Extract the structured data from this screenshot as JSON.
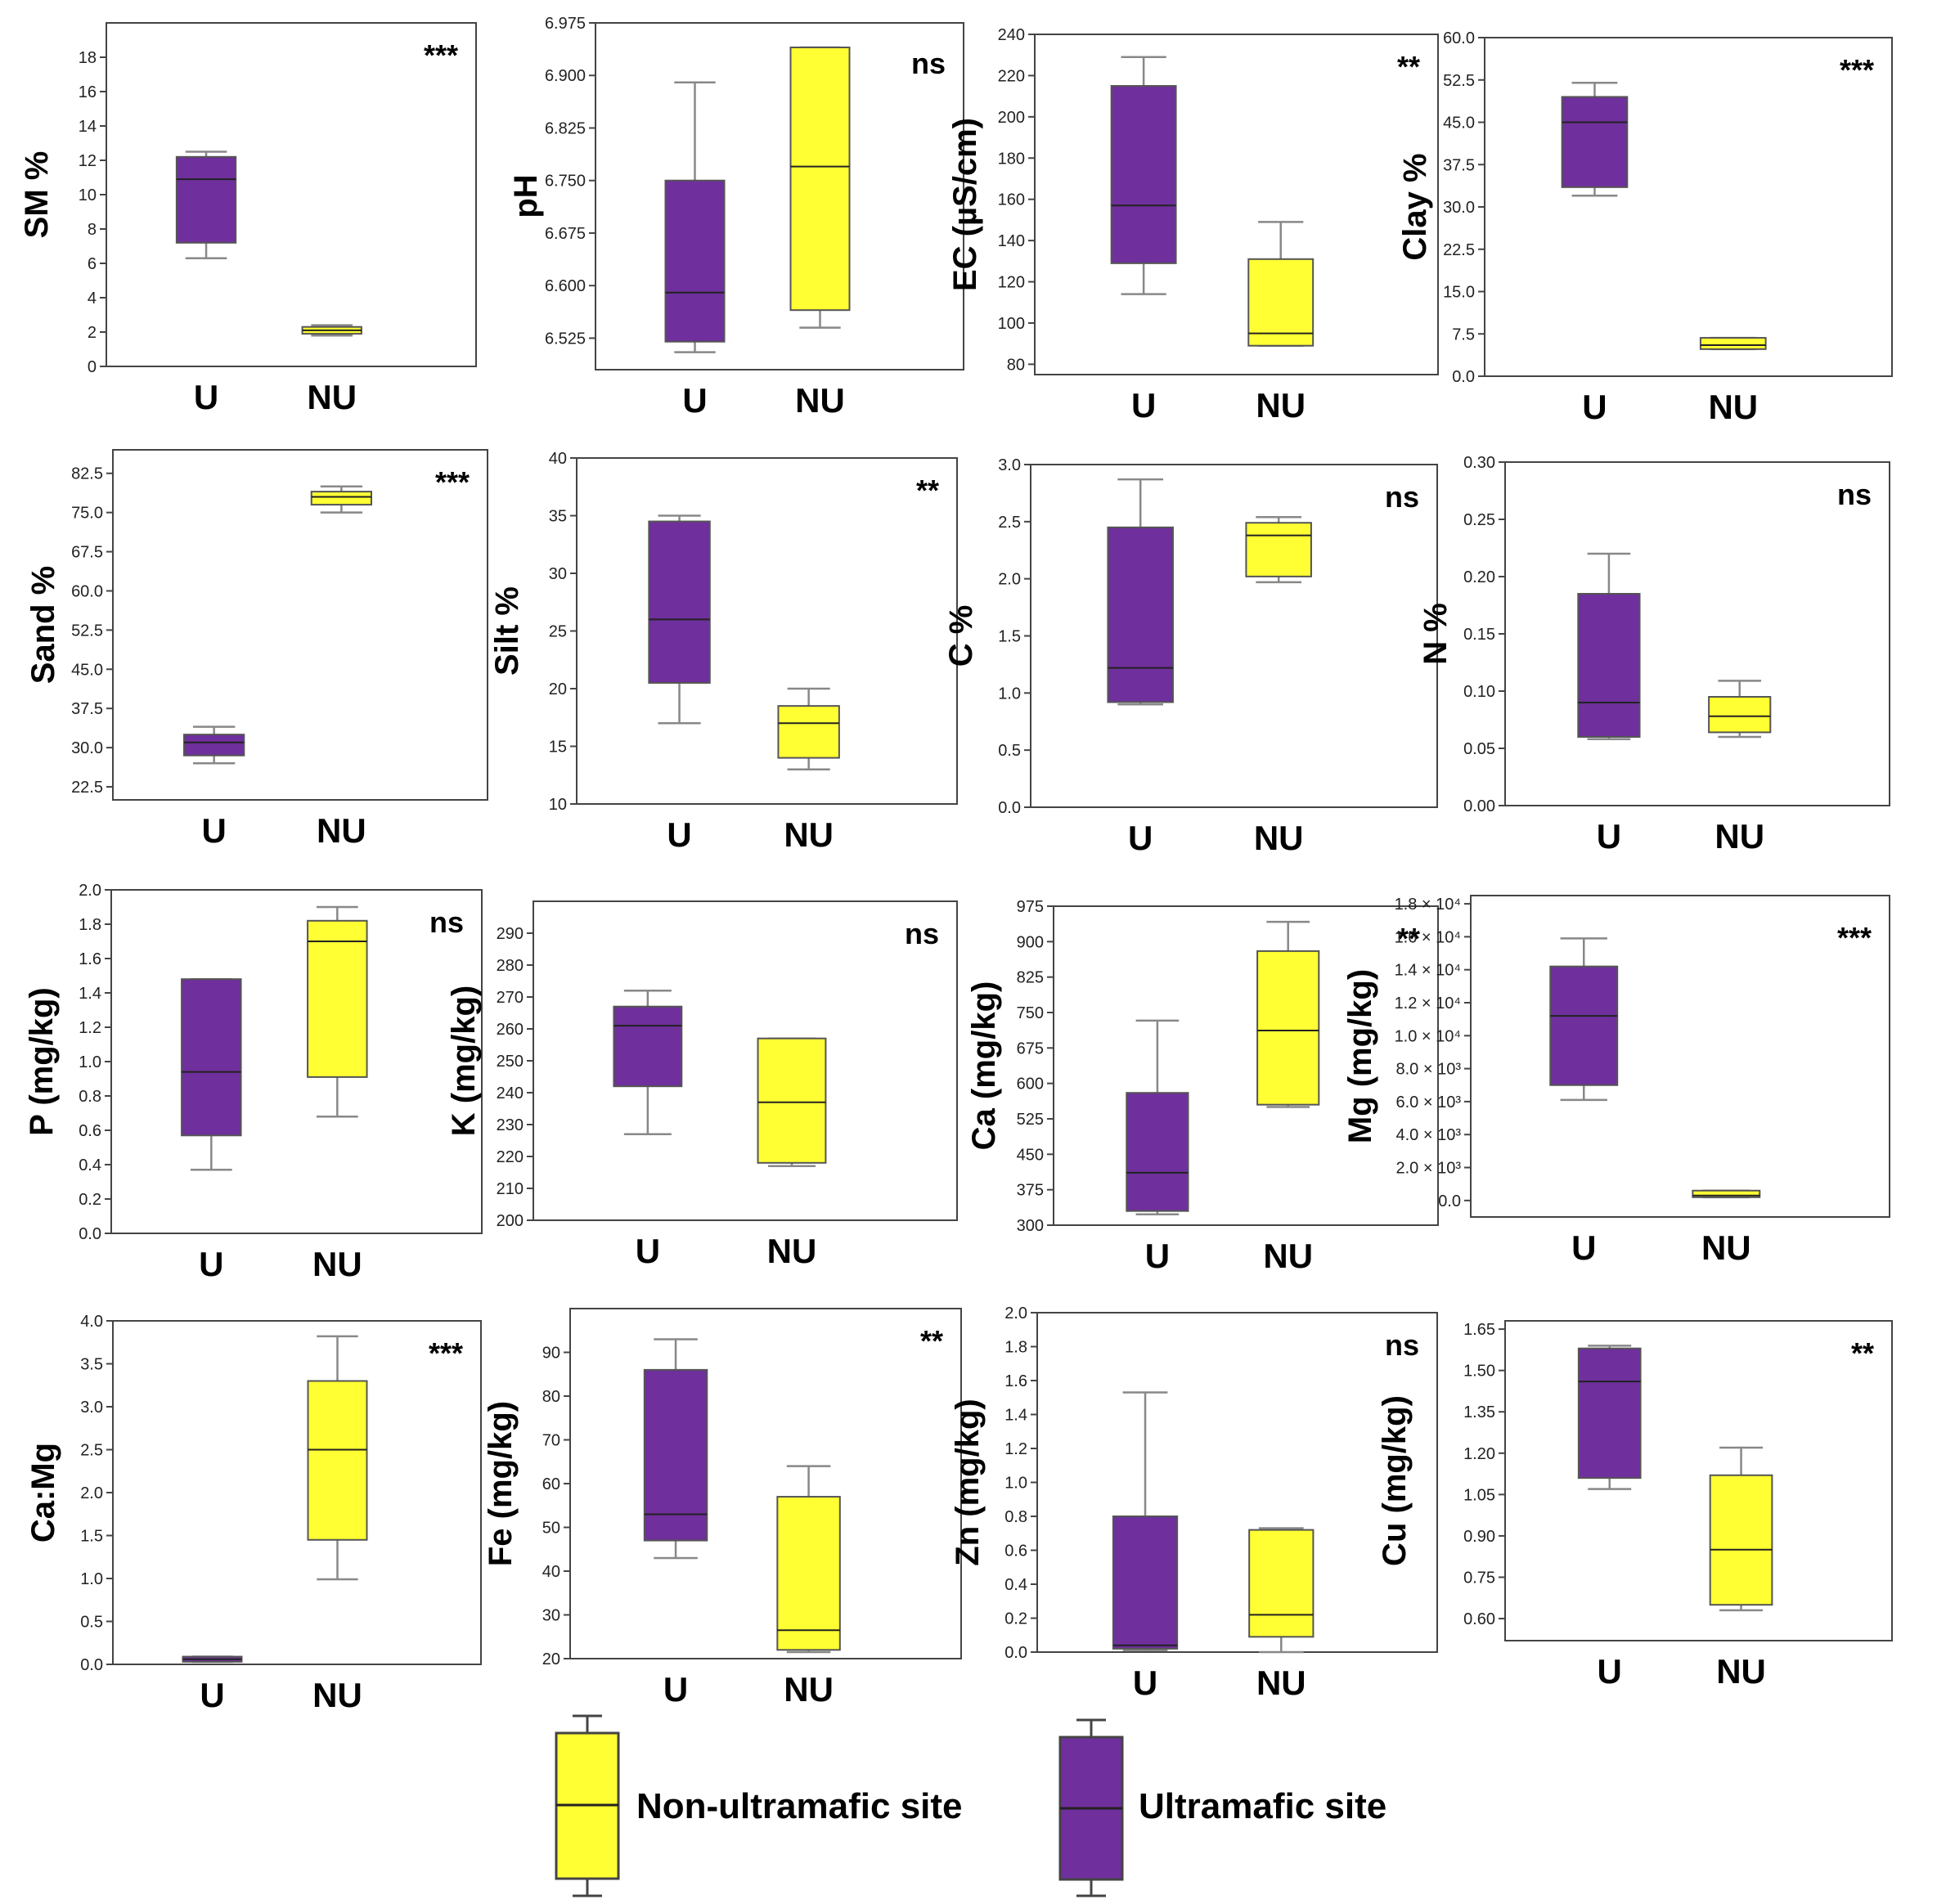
{
  "colors": {
    "ultramafic": "#6f2f9c",
    "non_ultramafic": "#ffff33",
    "whisker": "#888888",
    "frame": "#444444"
  },
  "legend": {
    "non_ultramafic_label": "Non-ultramafic site",
    "ultramafic_label": "Ultramafic site"
  },
  "chart_data": [
    {
      "id": "sm",
      "type": "box",
      "ylabel": "SM %",
      "significance": "***",
      "ylim": [
        0,
        20
      ],
      "ticks": [
        "0",
        "2",
        "4",
        "6",
        "8",
        "10",
        "12",
        "14",
        "16",
        "18"
      ],
      "tick_values": [
        0,
        2,
        4,
        6,
        8,
        10,
        12,
        14,
        16,
        18
      ],
      "groups": [
        {
          "label": "U",
          "site": "ultramafic",
          "min": 6.3,
          "q1": 7.2,
          "median": 10.9,
          "q3": 12.2,
          "max": 12.5
        },
        {
          "label": "NU",
          "site": "non_ultramafic",
          "min": 1.8,
          "q1": 1.9,
          "median": 2.1,
          "q3": 2.3,
          "max": 2.4
        }
      ]
    },
    {
      "id": "ph",
      "type": "box",
      "ylabel": "pH",
      "significance": "ns",
      "ylim": [
        6.48,
        6.975
      ],
      "ticks": [
        "6.525",
        "6.600",
        "6.675",
        "6.750",
        "6.825",
        "6.900",
        "6.975"
      ],
      "tick_values": [
        6.525,
        6.6,
        6.675,
        6.75,
        6.825,
        6.9,
        6.975
      ],
      "groups": [
        {
          "label": "U",
          "site": "ultramafic",
          "min": 6.505,
          "q1": 6.52,
          "median": 6.59,
          "q3": 6.75,
          "max": 6.89
        },
        {
          "label": "NU",
          "site": "non_ultramafic",
          "min": 6.54,
          "q1": 6.565,
          "median": 6.77,
          "q3": 6.94,
          "max": 6.94
        }
      ]
    },
    {
      "id": "ec",
      "type": "box",
      "ylabel": "EC (µS/cm)",
      "significance": "**",
      "ylim": [
        75,
        240
      ],
      "ticks": [
        "80",
        "100",
        "120",
        "140",
        "160",
        "180",
        "200",
        "220",
        "240"
      ],
      "tick_values": [
        80,
        100,
        120,
        140,
        160,
        180,
        200,
        220,
        240
      ],
      "groups": [
        {
          "label": "U",
          "site": "ultramafic",
          "min": 114,
          "q1": 129,
          "median": 157,
          "q3": 215,
          "max": 229
        },
        {
          "label": "NU",
          "site": "non_ultramafic",
          "min": 89,
          "q1": 89,
          "median": 95,
          "q3": 131,
          "max": 149
        }
      ]
    },
    {
      "id": "clay",
      "type": "box",
      "ylabel": "Clay %",
      "significance": "***",
      "ylim": [
        0,
        60
      ],
      "ticks": [
        "0.0",
        "7.5",
        "15.0",
        "22.5",
        "30.0",
        "37.5",
        "45.0",
        "52.5",
        "60.0"
      ],
      "tick_values": [
        0,
        7.5,
        15,
        22.5,
        30,
        37.5,
        45,
        52.5,
        60
      ],
      "groups": [
        {
          "label": "U",
          "site": "ultramafic",
          "min": 32,
          "q1": 33.5,
          "median": 45,
          "q3": 49.5,
          "max": 52
        },
        {
          "label": "NU",
          "site": "non_ultramafic",
          "min": 4.8,
          "q1": 4.8,
          "median": 5.5,
          "q3": 6.8,
          "max": 6.8
        }
      ]
    },
    {
      "id": "sand",
      "type": "box",
      "ylabel": "Sand %",
      "significance": "***",
      "ylim": [
        20,
        87
      ],
      "ticks": [
        "22.5",
        "30.0",
        "37.5",
        "45.0",
        "52.5",
        "60.0",
        "67.5",
        "75.0",
        "82.5"
      ],
      "tick_values": [
        22.5,
        30,
        37.5,
        45,
        52.5,
        60,
        67.5,
        75,
        82.5
      ],
      "groups": [
        {
          "label": "U",
          "site": "ultramafic",
          "min": 27,
          "q1": 28.5,
          "median": 31,
          "q3": 32.5,
          "max": 34
        },
        {
          "label": "NU",
          "site": "non_ultramafic",
          "min": 75,
          "q1": 76.5,
          "median": 78,
          "q3": 79,
          "max": 80
        }
      ]
    },
    {
      "id": "silt",
      "type": "box",
      "ylabel": "Silt %",
      "significance": "**",
      "ylim": [
        10,
        40
      ],
      "ticks": [
        "10",
        "15",
        "20",
        "25",
        "30",
        "35",
        "40"
      ],
      "tick_values": [
        10,
        15,
        20,
        25,
        30,
        35,
        40
      ],
      "groups": [
        {
          "label": "U",
          "site": "ultramafic",
          "min": 17,
          "q1": 20.5,
          "median": 26,
          "q3": 34.5,
          "max": 35
        },
        {
          "label": "NU",
          "site": "non_ultramafic",
          "min": 13,
          "q1": 14,
          "median": 17,
          "q3": 18.5,
          "max": 20
        }
      ]
    },
    {
      "id": "c",
      "type": "box",
      "ylabel": "C %",
      "significance": "ns",
      "ylim": [
        0,
        3
      ],
      "ticks": [
        "0.0",
        "0.5",
        "1.0",
        "1.5",
        "2.0",
        "2.5",
        "3.0"
      ],
      "tick_values": [
        0,
        0.5,
        1,
        1.5,
        2,
        2.5,
        3
      ],
      "groups": [
        {
          "label": "U",
          "site": "ultramafic",
          "min": 0.9,
          "q1": 0.92,
          "median": 1.22,
          "q3": 2.45,
          "max": 2.87
        },
        {
          "label": "NU",
          "site": "non_ultramafic",
          "min": 1.97,
          "q1": 2.02,
          "median": 2.38,
          "q3": 2.49,
          "max": 2.54
        }
      ]
    },
    {
      "id": "n",
      "type": "box",
      "ylabel": "N %",
      "significance": "ns",
      "ylim": [
        0,
        0.3
      ],
      "ticks": [
        "0.00",
        "0.05",
        "0.10",
        "0.15",
        "0.20",
        "0.25",
        "0.30"
      ],
      "tick_values": [
        0,
        0.05,
        0.1,
        0.15,
        0.2,
        0.25,
        0.3
      ],
      "groups": [
        {
          "label": "U",
          "site": "ultramafic",
          "min": 0.058,
          "q1": 0.06,
          "median": 0.09,
          "q3": 0.185,
          "max": 0.22
        },
        {
          "label": "NU",
          "site": "non_ultramafic",
          "min": 0.06,
          "q1": 0.064,
          "median": 0.078,
          "q3": 0.095,
          "max": 0.109
        }
      ]
    },
    {
      "id": "p",
      "type": "box",
      "ylabel": "P (mg/kg)",
      "significance": "ns",
      "ylim": [
        0,
        2
      ],
      "ticks": [
        "0.0",
        "0.2",
        "0.4",
        "0.6",
        "0.8",
        "1.0",
        "1.2",
        "1.4",
        "1.6",
        "1.8",
        "2.0"
      ],
      "tick_values": [
        0,
        0.2,
        0.4,
        0.6,
        0.8,
        1,
        1.2,
        1.4,
        1.6,
        1.8,
        2
      ],
      "groups": [
        {
          "label": "U",
          "site": "ultramafic",
          "min": 0.37,
          "q1": 0.57,
          "median": 0.94,
          "q3": 1.48,
          "max": 1.48
        },
        {
          "label": "NU",
          "site": "non_ultramafic",
          "min": 0.68,
          "q1": 0.91,
          "median": 1.7,
          "q3": 1.82,
          "max": 1.9
        }
      ]
    },
    {
      "id": "k",
      "type": "box",
      "ylabel": "K (mg/kg)",
      "significance": "ns",
      "ylim": [
        200,
        300
      ],
      "ticks": [
        "200",
        "210",
        "220",
        "230",
        "240",
        "250",
        "260",
        "270",
        "280",
        "290"
      ],
      "tick_values": [
        200,
        210,
        220,
        230,
        240,
        250,
        260,
        270,
        280,
        290
      ],
      "groups": [
        {
          "label": "U",
          "site": "ultramafic",
          "min": 227,
          "q1": 242,
          "median": 261,
          "q3": 267,
          "max": 272
        },
        {
          "label": "NU",
          "site": "non_ultramafic",
          "min": 217,
          "q1": 218,
          "median": 237,
          "q3": 257,
          "max": 257
        }
      ]
    },
    {
      "id": "ca",
      "type": "box",
      "ylabel": "Ca (mg/kg)",
      "significance": "**",
      "ylim": [
        300,
        975
      ],
      "ticks": [
        "300",
        "375",
        "450",
        "525",
        "600",
        "675",
        "750",
        "825",
        "900",
        "975"
      ],
      "tick_values": [
        300,
        375,
        450,
        525,
        600,
        675,
        750,
        825,
        900,
        975
      ],
      "groups": [
        {
          "label": "U",
          "site": "ultramafic",
          "min": 323,
          "q1": 330,
          "median": 411,
          "q3": 580,
          "max": 733
        },
        {
          "label": "NU",
          "site": "non_ultramafic",
          "min": 550,
          "q1": 555,
          "median": 712,
          "q3": 880,
          "max": 942
        }
      ]
    },
    {
      "id": "mg",
      "type": "box",
      "ylabel": "Mg (mg/kg)",
      "significance": "***",
      "ylim": [
        -1000,
        18500
      ],
      "ticks": [
        "0.0",
        "2.0 × 10³",
        "4.0 × 10³",
        "6.0 × 10³",
        "8.0 × 10³",
        "1.0 × 10⁴",
        "1.2 × 10⁴",
        "1.4 × 10⁴",
        "1.6 × 10⁴",
        "1.8 × 10⁴"
      ],
      "tick_values": [
        0,
        2000,
        4000,
        6000,
        8000,
        10000,
        12000,
        14000,
        16000,
        18000
      ],
      "groups": [
        {
          "label": "U",
          "site": "ultramafic",
          "min": 6100,
          "q1": 7000,
          "median": 11200,
          "q3": 14200,
          "max": 15900
        },
        {
          "label": "NU",
          "site": "non_ultramafic",
          "min": 200,
          "q1": 200,
          "median": 300,
          "q3": 600,
          "max": 600
        }
      ]
    },
    {
      "id": "camg",
      "type": "box",
      "ylabel": "Ca:Mg",
      "significance": "***",
      "ylim": [
        0,
        4
      ],
      "ticks": [
        "0.0",
        "0.5",
        "1.0",
        "1.5",
        "2.0",
        "2.5",
        "3.0",
        "3.5",
        "4.0"
      ],
      "tick_values": [
        0,
        0.5,
        1,
        1.5,
        2,
        2.5,
        3,
        3.5,
        4
      ],
      "groups": [
        {
          "label": "U",
          "site": "ultramafic",
          "min": 0.03,
          "q1": 0.03,
          "median": 0.06,
          "q3": 0.09,
          "max": 0.09
        },
        {
          "label": "NU",
          "site": "non_ultramafic",
          "min": 0.99,
          "q1": 1.45,
          "median": 2.5,
          "q3": 3.3,
          "max": 3.82
        }
      ]
    },
    {
      "id": "fe",
      "type": "box",
      "ylabel": "Fe (mg/kg)",
      "significance": "**",
      "ylim": [
        20,
        100
      ],
      "ticks": [
        "20",
        "30",
        "40",
        "50",
        "60",
        "70",
        "80",
        "90"
      ],
      "tick_values": [
        20,
        30,
        40,
        50,
        60,
        70,
        80,
        90
      ],
      "groups": [
        {
          "label": "U",
          "site": "ultramafic",
          "min": 43,
          "q1": 47,
          "median": 53,
          "q3": 86,
          "max": 93
        },
        {
          "label": "NU",
          "site": "non_ultramafic",
          "min": 21.5,
          "q1": 22,
          "median": 26.5,
          "q3": 57,
          "max": 64
        }
      ]
    },
    {
      "id": "zn",
      "type": "box",
      "ylabel": "Zn (mg/kg)",
      "significance": "ns",
      "ylim": [
        0,
        2
      ],
      "ticks": [
        "0.0",
        "0.2",
        "0.4",
        "0.6",
        "0.8",
        "1.0",
        "1.2",
        "1.4",
        "1.6",
        "1.8",
        "2.0"
      ],
      "tick_values": [
        0,
        0.2,
        0.4,
        0.6,
        0.8,
        1,
        1.2,
        1.4,
        1.6,
        1.8,
        2
      ],
      "groups": [
        {
          "label": "U",
          "site": "ultramafic",
          "min": 0.01,
          "q1": 0.02,
          "median": 0.04,
          "q3": 0.8,
          "max": 1.53
        },
        {
          "label": "NU",
          "site": "non_ultramafic",
          "min": 0.0,
          "q1": 0.09,
          "median": 0.22,
          "q3": 0.72,
          "max": 0.73
        }
      ]
    },
    {
      "id": "cu",
      "type": "box",
      "ylabel": "Cu (mg/kg)",
      "significance": "**",
      "ylim": [
        0.52,
        1.68
      ],
      "ticks": [
        "0.60",
        "0.75",
        "0.90",
        "1.05",
        "1.20",
        "1.35",
        "1.50",
        "1.65"
      ],
      "tick_values": [
        0.6,
        0.75,
        0.9,
        1.05,
        1.2,
        1.35,
        1.5,
        1.65
      ],
      "groups": [
        {
          "label": "U",
          "site": "ultramafic",
          "min": 1.07,
          "q1": 1.11,
          "median": 1.46,
          "q3": 1.58,
          "max": 1.59
        },
        {
          "label": "NU",
          "site": "non_ultramafic",
          "min": 0.63,
          "q1": 0.65,
          "median": 0.85,
          "q3": 1.12,
          "max": 1.22
        }
      ]
    }
  ]
}
